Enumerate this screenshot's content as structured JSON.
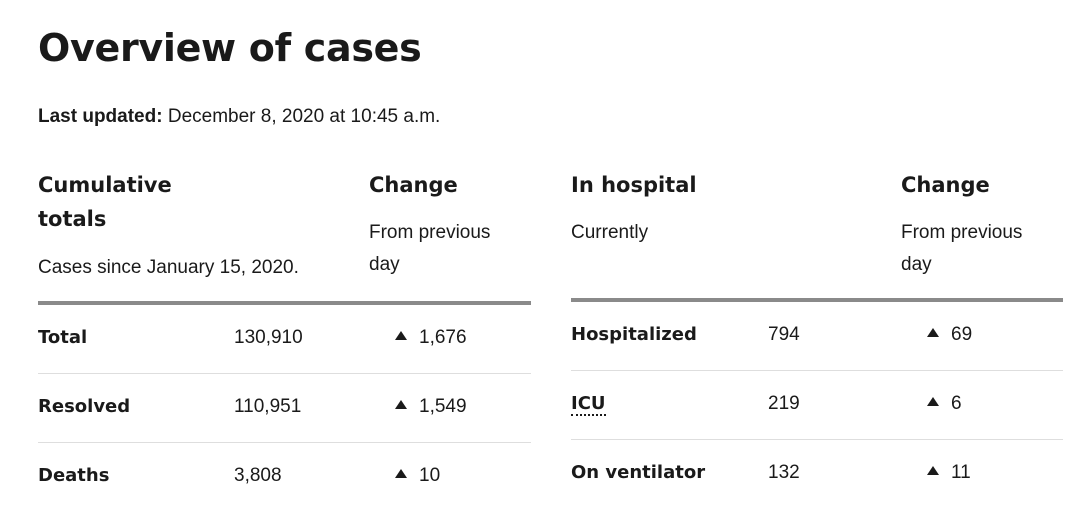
{
  "title": "Overview of cases",
  "updated": {
    "label": "Last updated:",
    "value": "December 8, 2020 at 10:45 a.m."
  },
  "left": {
    "heading": "Cumulative totals",
    "heading_line1": "Cumulative",
    "heading_line2": "totals",
    "subtitle": "Cases since January 15, 2020.",
    "change_heading": "Change",
    "change_sub_line1": "From previous",
    "change_sub_line2": "day",
    "rows": [
      {
        "label": "Total",
        "value": "130,910",
        "change": "1,676"
      },
      {
        "label": "Resolved",
        "value": "110,951",
        "change": "1,549"
      },
      {
        "label": "Deaths",
        "value": "3,808",
        "change": "10"
      }
    ]
  },
  "right": {
    "heading": "In hospital",
    "subtitle": "Currently",
    "change_heading": "Change",
    "change_sub_line1": "From previous",
    "change_sub_line2": "day",
    "rows": [
      {
        "label": "Hospitalized",
        "value": "794",
        "change": "69"
      },
      {
        "label": "ICU",
        "value": "219",
        "change": "6"
      },
      {
        "label": "On ventilator",
        "value": "132",
        "change": "11"
      }
    ]
  },
  "icons": {
    "increase": "up-triangle-icon"
  }
}
